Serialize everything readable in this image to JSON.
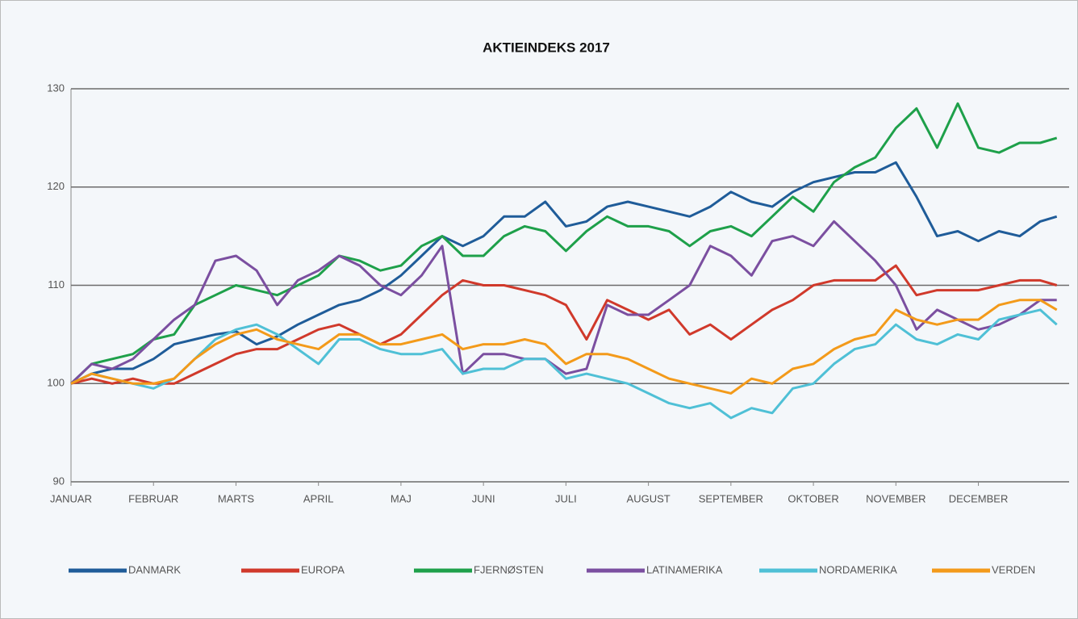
{
  "chart_data": {
    "type": "line",
    "title": "AKTIEINDEKS 2017",
    "x": [
      0,
      0.25,
      0.5,
      0.75,
      1,
      1.25,
      1.5,
      1.75,
      2,
      2.25,
      2.5,
      2.75,
      3,
      3.25,
      3.5,
      3.75,
      4,
      4.25,
      4.5,
      4.75,
      5,
      5.25,
      5.5,
      5.75,
      6,
      6.25,
      6.5,
      6.75,
      7,
      7.25,
      7.5,
      7.75,
      8,
      8.25,
      8.5,
      8.75,
      9,
      9.25,
      9.5,
      9.75,
      10,
      10.25,
      10.5,
      10.75,
      11,
      11.25,
      11.5,
      11.75,
      11.95
    ],
    "xlim": [
      0,
      12.1
    ],
    "xticks": [
      {
        "value": 0,
        "label": "JANUAR"
      },
      {
        "value": 1,
        "label": "FEBRUAR"
      },
      {
        "value": 2,
        "label": "MARTS"
      },
      {
        "value": 3,
        "label": "APRIL"
      },
      {
        "value": 4,
        "label": "MAJ"
      },
      {
        "value": 5,
        "label": "JUNI"
      },
      {
        "value": 6,
        "label": "JULI"
      },
      {
        "value": 7,
        "label": "AUGUST"
      },
      {
        "value": 8,
        "label": "SEPTEMBER"
      },
      {
        "value": 9,
        "label": "OKTOBER"
      },
      {
        "value": 10,
        "label": "NOVEMBER"
      },
      {
        "value": 11,
        "label": "DECEMBER"
      }
    ],
    "ylim": [
      90,
      130
    ],
    "yticks": [
      90,
      100,
      110,
      120,
      130
    ],
    "grid": true,
    "series": [
      {
        "name": "DANMARK",
        "color": "#1f5c99",
        "values": [
          100,
          101,
          101.5,
          101.5,
          102.5,
          104,
          104.5,
          105,
          105.3,
          104,
          104.8,
          106,
          107,
          108,
          108.5,
          109.5,
          111,
          113,
          115,
          114,
          115,
          117,
          117,
          118.5,
          116,
          116.5,
          118,
          118.5,
          118,
          117.5,
          117,
          118,
          119.5,
          118.5,
          118,
          119.5,
          120.5,
          121,
          121.5,
          121.5,
          122.5,
          119,
          115,
          115.5,
          114.5,
          115.5,
          115,
          116.5,
          117
        ]
      },
      {
        "name": "EUROPA",
        "color": "#d0392b",
        "values": [
          100,
          100.5,
          100,
          100.5,
          100,
          100,
          101,
          102,
          103,
          103.5,
          103.5,
          104.5,
          105.5,
          106,
          105,
          104,
          105,
          107,
          109,
          110.5,
          110,
          110,
          109.5,
          109,
          108,
          104.5,
          108.5,
          107.5,
          106.5,
          107.5,
          105,
          106,
          104.5,
          106,
          107.5,
          108.5,
          110,
          110.5,
          110.5,
          110.5,
          112,
          109,
          109.5,
          109.5,
          109.5,
          110,
          110.5,
          110.5,
          110
        ]
      },
      {
        "name": "FJERNØSTEN",
        "color": "#1ea04a",
        "values": [
          100,
          102,
          102.5,
          103,
          104.5,
          105,
          108,
          109,
          110,
          109.5,
          109,
          110,
          111,
          113,
          112.5,
          111.5,
          112,
          114,
          115,
          113,
          113,
          115,
          116,
          115.5,
          113.5,
          115.5,
          117,
          116,
          116,
          115.5,
          114,
          115.5,
          116,
          115,
          117,
          119,
          117.5,
          120.5,
          122,
          123,
          126,
          128,
          124,
          128.5,
          124,
          123.5,
          124.5,
          124.5,
          125
        ]
      },
      {
        "name": "LATINAMERIKA",
        "color": "#7b4fa0",
        "values": [
          100,
          102,
          101.5,
          102.5,
          104.5,
          106.5,
          108,
          112.5,
          113,
          111.5,
          108,
          110.5,
          111.5,
          113,
          112,
          110,
          109,
          111,
          114,
          101,
          103,
          103,
          102.5,
          102.5,
          101,
          101.5,
          108,
          107,
          107,
          108.5,
          110,
          114,
          113,
          111,
          114.5,
          115,
          114,
          116.5,
          114.5,
          112.5,
          110,
          105.5,
          107.5,
          106.5,
          105.5,
          106,
          107,
          108.5,
          108.5
        ]
      },
      {
        "name": "NORDAMERIKA",
        "color": "#4fc0d6",
        "values": [
          100,
          101,
          100.5,
          100,
          99.5,
          100.5,
          102.5,
          104.5,
          105.5,
          106,
          105,
          103.5,
          102,
          104.5,
          104.5,
          103.5,
          103,
          103,
          103.5,
          101,
          101.5,
          101.5,
          102.5,
          102.5,
          100.5,
          101,
          100.5,
          100,
          99,
          98,
          97.5,
          98,
          96.5,
          97.5,
          97,
          99.5,
          100,
          102,
          103.5,
          104,
          106,
          104.5,
          104,
          105,
          104.5,
          106.5,
          107,
          107.5,
          106
        ]
      },
      {
        "name": "VERDEN",
        "color": "#f39a1a",
        "values": [
          100,
          101,
          100.5,
          100,
          100,
          100.5,
          102.5,
          104,
          105,
          105.5,
          104.5,
          104,
          103.5,
          105,
          105,
          104,
          104,
          104.5,
          105,
          103.5,
          104,
          104,
          104.5,
          104,
          102,
          103,
          103,
          102.5,
          101.5,
          100.5,
          100,
          99.5,
          99,
          100.5,
          100,
          101.5,
          102,
          103.5,
          104.5,
          105,
          107.5,
          106.5,
          106,
          106.5,
          106.5,
          108,
          108.5,
          108.5,
          107.5
        ]
      }
    ]
  }
}
